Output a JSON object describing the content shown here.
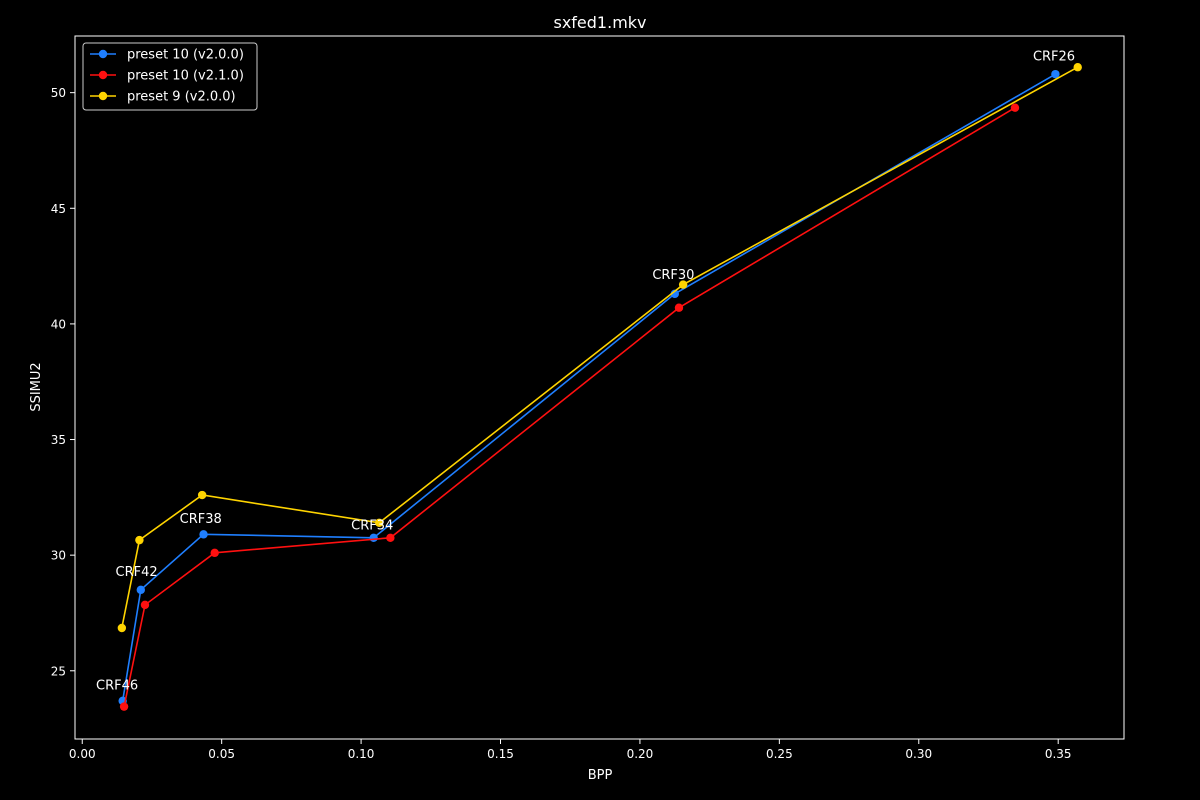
{
  "chart_data": {
    "type": "line",
    "title": "sxfed1.mkv",
    "xlabel": "BPP",
    "ylabel": "SSIMU2",
    "xlim": [
      -0.0026,
      0.3736
    ],
    "ylim": [
      22.05,
      52.45
    ],
    "x_ticks": [
      0.0,
      0.05,
      0.1,
      0.15,
      0.2,
      0.25,
      0.3,
      0.35
    ],
    "x_tick_labels": [
      "0.00",
      "0.05",
      "0.10",
      "0.15",
      "0.20",
      "0.25",
      "0.30",
      "0.35"
    ],
    "y_ticks": [
      25,
      30,
      35,
      40,
      45,
      50
    ],
    "y_tick_labels": [
      "25",
      "30",
      "35",
      "40",
      "45",
      "50"
    ],
    "grid": false,
    "legend_position": "top-left",
    "background": "#000000",
    "foreground": "#ffffff",
    "series": [
      {
        "name": "preset 10 (v2.0.0)",
        "color": "#1f7fff",
        "points": [
          {
            "x": 0.0145,
            "y": 23.7
          },
          {
            "x": 0.021,
            "y": 28.5
          },
          {
            "x": 0.0435,
            "y": 30.9
          },
          {
            "x": 0.1045,
            "y": 30.75
          },
          {
            "x": 0.2125,
            "y": 41.3
          },
          {
            "x": 0.349,
            "y": 50.8
          }
        ]
      },
      {
        "name": "preset 10 (v2.1.0)",
        "color": "#ff1010",
        "points": [
          {
            "x": 0.015,
            "y": 23.45
          },
          {
            "x": 0.0225,
            "y": 27.85
          },
          {
            "x": 0.0475,
            "y": 30.1
          },
          {
            "x": 0.1105,
            "y": 30.75
          },
          {
            "x": 0.214,
            "y": 40.7
          },
          {
            "x": 0.3345,
            "y": 49.35
          }
        ]
      },
      {
        "name": "preset 9 (v2.0.0)",
        "color": "#ffd400",
        "points": [
          {
            "x": 0.0142,
            "y": 26.85
          },
          {
            "x": 0.0205,
            "y": 30.65
          },
          {
            "x": 0.043,
            "y": 32.6
          },
          {
            "x": 0.1065,
            "y": 31.4
          },
          {
            "x": 0.2155,
            "y": 41.7
          },
          {
            "x": 0.357,
            "y": 51.1
          }
        ]
      }
    ],
    "annotations": [
      {
        "text": "CRF46",
        "x": 0.0125,
        "y": 24.2
      },
      {
        "text": "CRF42",
        "x": 0.0195,
        "y": 29.1
      },
      {
        "text": "CRF38",
        "x": 0.0425,
        "y": 31.4
      },
      {
        "text": "CRF34",
        "x": 0.104,
        "y": 31.1
      },
      {
        "text": "CRF30",
        "x": 0.212,
        "y": 41.95
      },
      {
        "text": "CRF26",
        "x": 0.3485,
        "y": 51.4
      }
    ]
  }
}
